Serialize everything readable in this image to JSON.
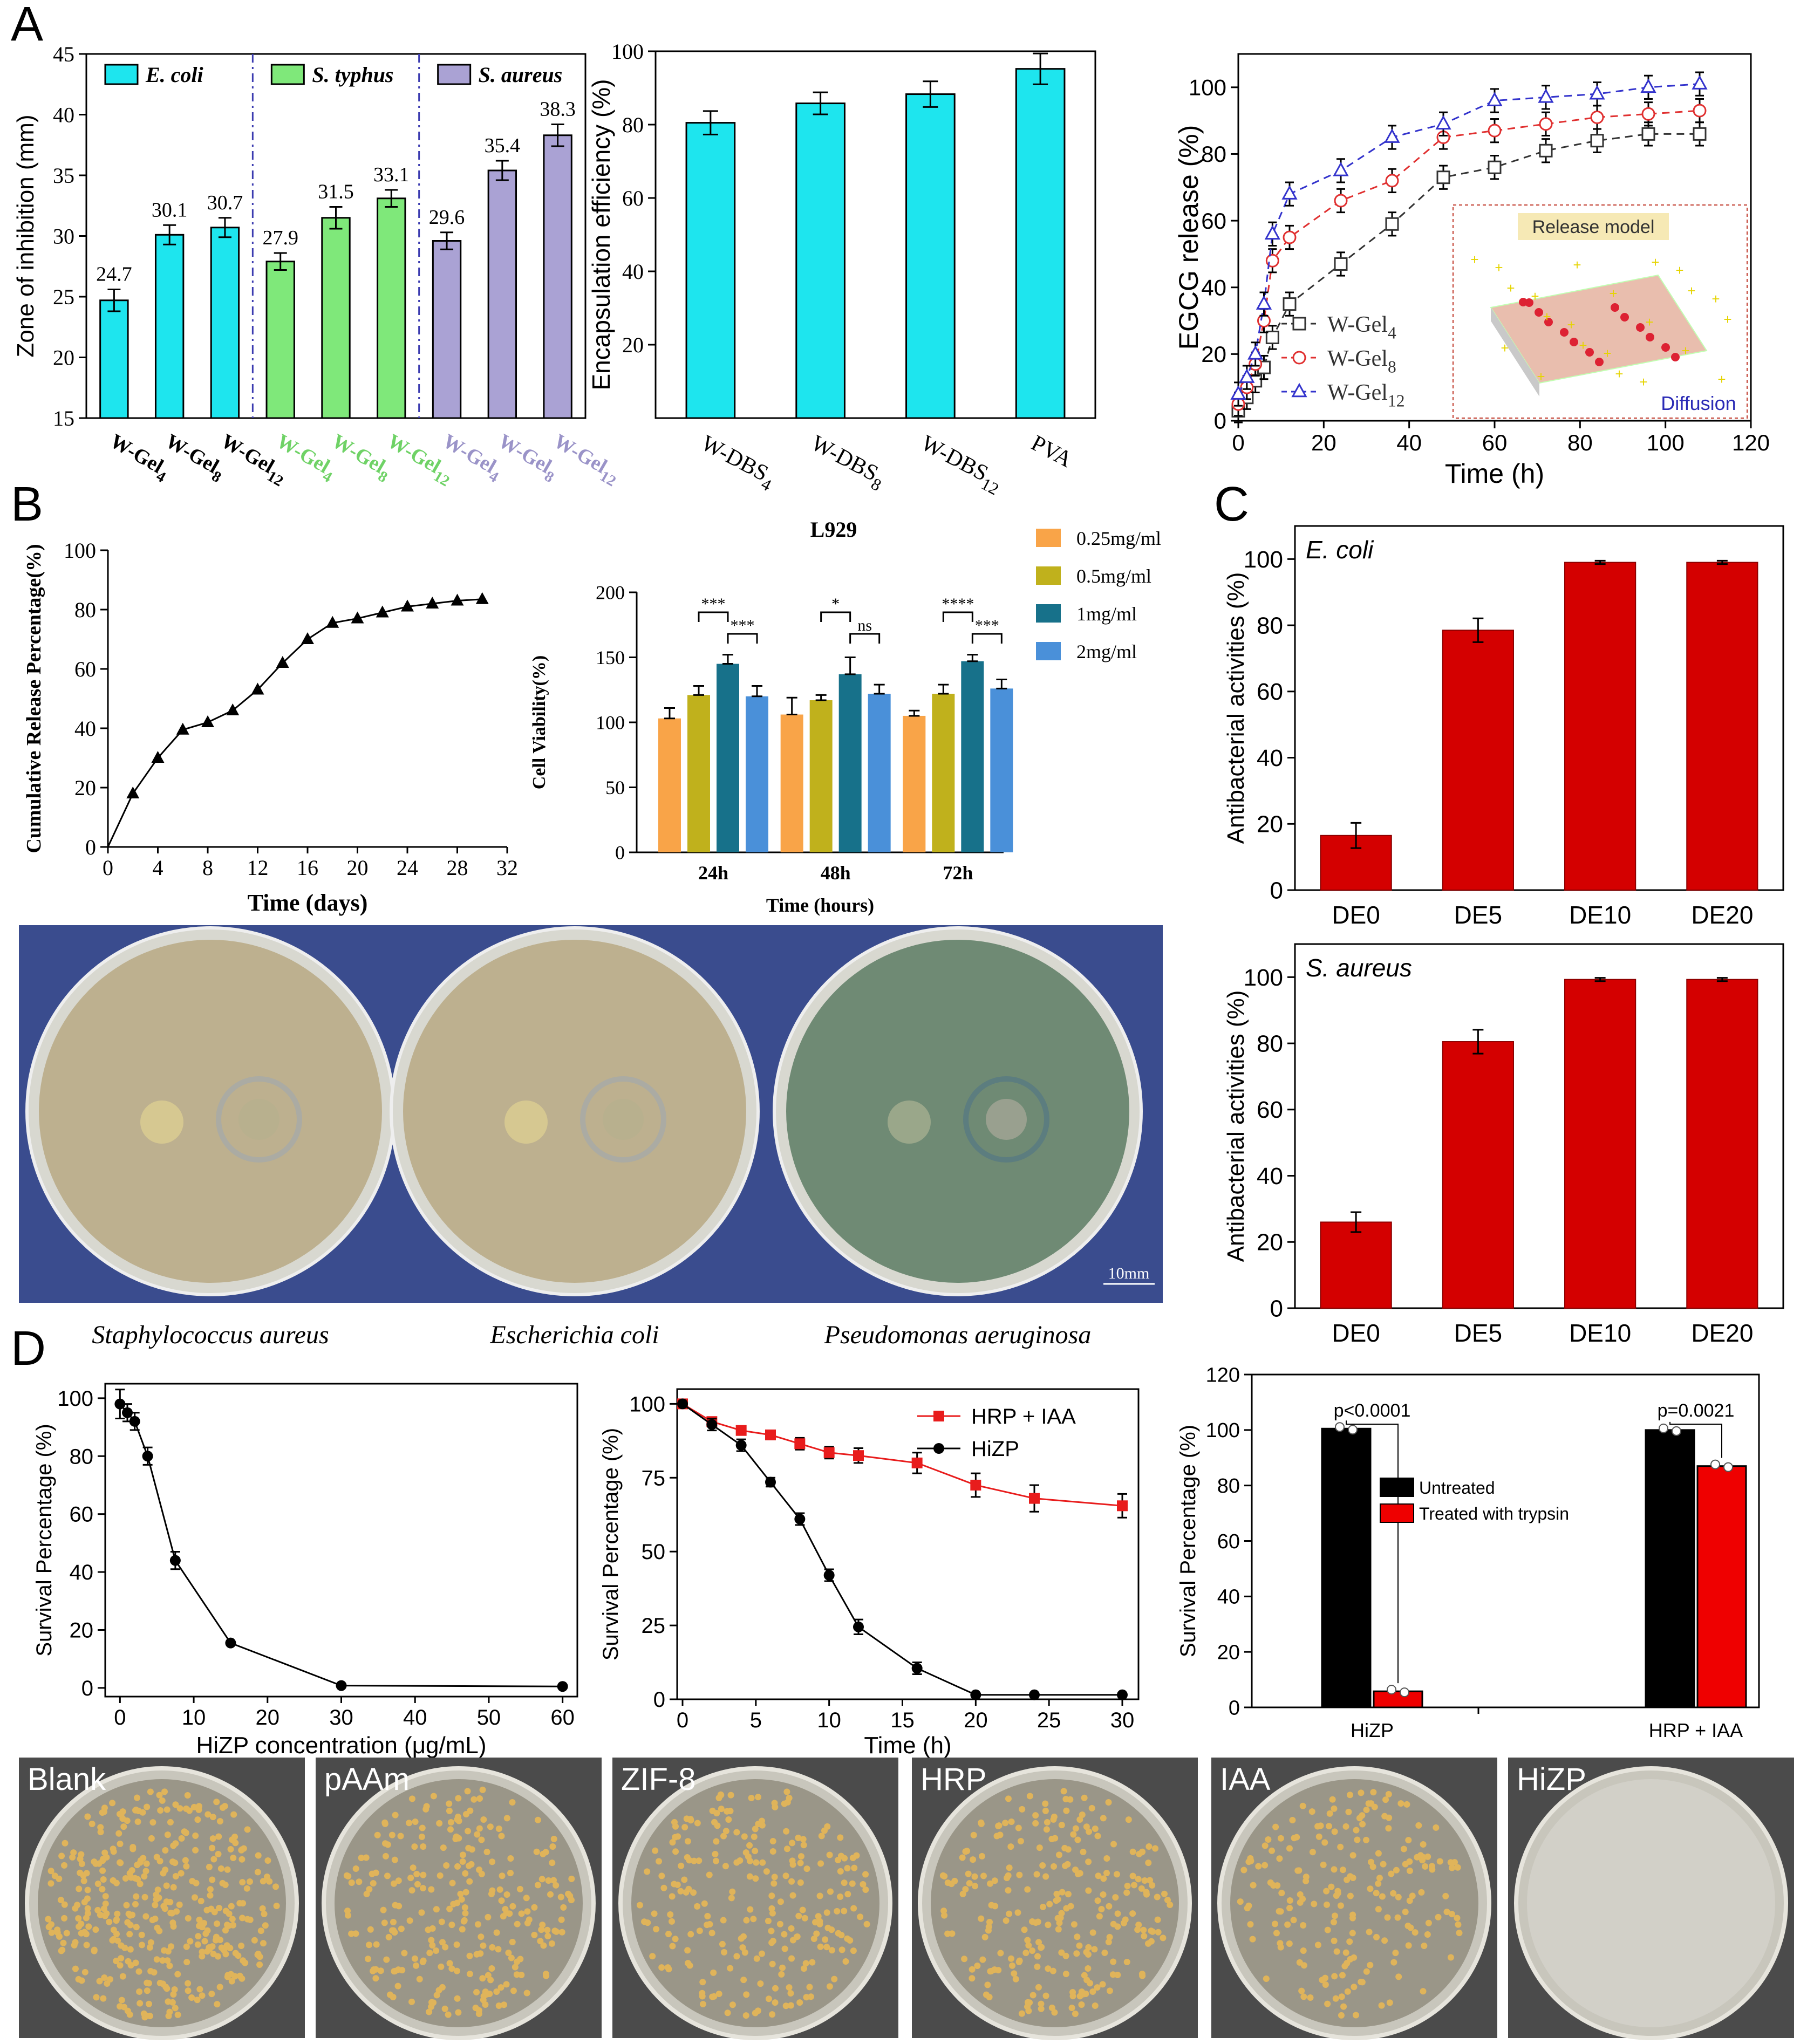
{
  "panels": {
    "A": "A",
    "B": "B",
    "C": "C",
    "D": "D"
  },
  "colors": {
    "cyan": "#1ee5ee",
    "green": "#7fe87a",
    "lavender": "#aaa2d4",
    "red": "#d40000",
    "black": "#000000",
    "orange": "#f9a448",
    "olive": "#c0b11c",
    "teal": "#17718a",
    "blue": "#4a90d9",
    "plate_bg": "#3a4c8e",
    "plate_agar": "#bdb08f",
    "plate_agar_pa": "#6f8a74"
  },
  "chart_data": [
    {
      "id": "A1",
      "type": "bar",
      "title": "",
      "ylabel": "Zone of inhibition (mm)",
      "ylim": [
        15,
        45
      ],
      "yticks": [
        15,
        20,
        25,
        30,
        35,
        40,
        45
      ],
      "legend": [
        "E. coli",
        "S. typhus",
        "S. aureus"
      ],
      "categories": [
        "W-Gel4",
        "W-Gel8",
        "W-Gel12",
        "W-Gel4",
        "W-Gel8",
        "W-Gel12",
        "W-Gel4",
        "W-Gel8",
        "W-Gel12"
      ],
      "groups": [
        "E. coli",
        "E. coli",
        "E. coli",
        "S. typhus",
        "S. typhus",
        "S. typhus",
        "S. aureus",
        "S. aureus",
        "S. aureus"
      ],
      "values": [
        24.7,
        30.1,
        30.7,
        27.9,
        31.5,
        33.1,
        29.6,
        35.4,
        38.3
      ],
      "labels": [
        "24.7",
        "30.1",
        "30.7",
        "27.9",
        "31.5",
        "33.1",
        "29.6",
        "35.4",
        "38.3"
      ],
      "errors": [
        0.9,
        0.8,
        0.8,
        0.7,
        0.9,
        0.7,
        0.7,
        0.8,
        0.9
      ]
    },
    {
      "id": "A2",
      "type": "bar",
      "ylabel": "Encapsulation efficiency (%)",
      "ylim": [
        0,
        100
      ],
      "yticks": [
        20,
        40,
        60,
        80,
        100
      ],
      "categories": [
        "W-DBS4",
        "W-DBS8",
        "W-DBS12",
        "PVA"
      ],
      "values": [
        80.5,
        85.8,
        88.3,
        95.2
      ],
      "errors": [
        3.2,
        3.0,
        3.5,
        4.2
      ]
    },
    {
      "id": "A3",
      "type": "line",
      "xlabel": "Time (h)",
      "ylabel": "EGCG release (%)",
      "xlim": [
        0,
        120
      ],
      "ylim": [
        0,
        110
      ],
      "xticks": [
        0,
        20,
        40,
        60,
        80,
        100,
        120
      ],
      "yticks": [
        0,
        20,
        40,
        60,
        80,
        100
      ],
      "inset_title": "Release model",
      "inset_label": "Diffusion",
      "series": [
        {
          "name": "W-Gel4",
          "x": [
            0,
            2,
            4,
            6,
            8,
            12,
            24,
            36,
            48,
            60,
            72,
            84,
            96,
            108
          ],
          "y": [
            3,
            7,
            12,
            16,
            25,
            35,
            47,
            59,
            73,
            76,
            81,
            84,
            86,
            86
          ]
        },
        {
          "name": "W-Gel8",
          "x": [
            0,
            2,
            4,
            6,
            8,
            12,
            24,
            36,
            48,
            60,
            72,
            84,
            96,
            108
          ],
          "y": [
            5,
            10,
            17,
            30,
            48,
            55,
            66,
            72,
            85,
            87,
            89,
            91,
            92,
            93
          ]
        },
        {
          "name": "W-Gel12",
          "x": [
            0,
            2,
            4,
            6,
            8,
            12,
            24,
            36,
            48,
            60,
            72,
            84,
            96,
            108
          ],
          "y": [
            8,
            13,
            20,
            35,
            56,
            68,
            75,
            85,
            89,
            96,
            97,
            98,
            100,
            101
          ]
        }
      ]
    },
    {
      "id": "B1",
      "type": "line",
      "xlabel": "Time (days)",
      "ylabel": "Cumulative Release Percentage(%)",
      "xlim": [
        0,
        32
      ],
      "ylim": [
        0,
        100
      ],
      "xticks": [
        0,
        4,
        8,
        12,
        16,
        20,
        24,
        28,
        32
      ],
      "yticks": [
        0,
        20,
        40,
        60,
        80,
        100
      ],
      "series": [
        {
          "name": "release",
          "x": [
            0,
            2,
            4,
            6,
            8,
            10,
            12,
            14,
            16,
            18,
            20,
            22,
            24,
            26,
            28,
            30
          ],
          "y": [
            0,
            18,
            30,
            39.5,
            42,
            46,
            53,
            62,
            70,
            75.5,
            77,
            79,
            81,
            82,
            83,
            83.5
          ]
        }
      ]
    },
    {
      "id": "B2",
      "type": "bar",
      "title": "L929",
      "xlabel": "Time (hours)",
      "ylabel": "Cell Viability(%)",
      "ylim": [
        0,
        200
      ],
      "yticks": [
        0,
        50,
        100,
        150,
        200
      ],
      "categories": [
        "24h",
        "48h",
        "72h"
      ],
      "series": [
        {
          "name": "0.25mg/ml",
          "values": [
            103,
            106,
            105
          ],
          "errors": [
            8,
            13,
            4
          ]
        },
        {
          "name": "0.5mg/ml",
          "values": [
            121,
            117,
            122
          ],
          "errors": [
            7,
            4,
            7
          ]
        },
        {
          "name": "1mg/ml",
          "values": [
            145,
            137,
            147
          ],
          "errors": [
            7,
            13,
            5
          ]
        },
        {
          "name": "2mg/ml",
          "values": [
            120,
            122,
            126
          ],
          "errors": [
            8,
            7,
            7
          ]
        }
      ],
      "significance": [
        {
          "group": "24h",
          "label": "***",
          "pair": [
            1,
            2
          ]
        },
        {
          "group": "24h",
          "label": "***",
          "pair": [
            2,
            3
          ]
        },
        {
          "group": "48h",
          "label": "*",
          "pair": [
            1,
            2
          ]
        },
        {
          "group": "48h",
          "label": "ns",
          "pair": [
            2,
            3
          ]
        },
        {
          "group": "72h",
          "label": "****",
          "pair": [
            1,
            2
          ]
        },
        {
          "group": "72h",
          "label": "***",
          "pair": [
            2,
            3
          ]
        }
      ]
    },
    {
      "id": "C1",
      "type": "bar",
      "title": "E. coli",
      "ylabel": "Antibacterial activities (%)",
      "ylim": [
        0,
        110
      ],
      "yticks": [
        0,
        20,
        40,
        60,
        80,
        100
      ],
      "categories": [
        "DE0",
        "DE5",
        "DE10",
        "DE20"
      ],
      "values": [
        16.5,
        78.5,
        99,
        99
      ],
      "errors": [
        3.8,
        3.6,
        0.5,
        0.5
      ]
    },
    {
      "id": "C2",
      "type": "bar",
      "title": "S. aureus",
      "ylabel": "Antibacterial activities (%)",
      "ylim": [
        0,
        110
      ],
      "yticks": [
        0,
        20,
        40,
        60,
        80,
        100
      ],
      "categories": [
        "DE0",
        "DE5",
        "DE10",
        "DE20"
      ],
      "values": [
        26,
        80.5,
        99.3,
        99.3
      ],
      "errors": [
        3.0,
        3.6,
        0.5,
        0.5
      ]
    },
    {
      "id": "D1",
      "type": "line",
      "xlabel": "HiZP concentration (μg/mL)",
      "ylabel": "Survival Percentage (%)",
      "xlim": [
        -2,
        62
      ],
      "ylim": [
        -3,
        105
      ],
      "xticks": [
        0,
        10,
        20,
        30,
        40,
        50,
        60
      ],
      "yticks": [
        0,
        20,
        40,
        60,
        80,
        100
      ],
      "series": [
        {
          "name": "HiZP",
          "x": [
            0,
            1,
            2,
            3.75,
            7.5,
            15,
            30,
            60
          ],
          "y": [
            98,
            95,
            92,
            80,
            44,
            15.5,
            0.8,
            0.5
          ],
          "errors": [
            5,
            3,
            3,
            3,
            3,
            0.5,
            0.2,
            0.2
          ]
        }
      ]
    },
    {
      "id": "D2",
      "type": "line",
      "xlabel": "Time (h)",
      "ylabel": "Survival Percentage (%)",
      "xlim": [
        0,
        30
      ],
      "ylim": [
        0,
        105
      ],
      "xticks": [
        0,
        5,
        10,
        15,
        20,
        25,
        30
      ],
      "yticks": [
        0,
        25,
        50,
        75,
        100
      ],
      "series": [
        {
          "name": "HRP + IAA",
          "x": [
            0,
            2,
            4,
            6,
            8,
            10,
            12,
            16,
            20,
            24,
            30
          ],
          "y": [
            100,
            94,
            91,
            89.5,
            86.5,
            83.5,
            82.5,
            80,
            72.5,
            68,
            65.5
          ],
          "errors": [
            0,
            1.5,
            1.5,
            1.5,
            2,
            2,
            2.5,
            3.5,
            4,
            4.5,
            4
          ]
        },
        {
          "name": "HiZP",
          "x": [
            0,
            2,
            4,
            6,
            8,
            10,
            12,
            16,
            20,
            24,
            30
          ],
          "y": [
            100,
            93,
            86,
            73.5,
            61,
            42,
            24.5,
            10.5,
            1.5,
            1.5,
            1.5
          ],
          "errors": [
            0,
            2,
            2,
            1.5,
            2,
            2,
            2.5,
            2,
            0.3,
            0.3,
            0.3
          ]
        }
      ]
    },
    {
      "id": "D3",
      "type": "bar",
      "ylabel": "Survival Percentage (%)",
      "ylim": [
        0,
        120
      ],
      "yticks": [
        0,
        20,
        40,
        60,
        80,
        100,
        120
      ],
      "categories": [
        "HiZP",
        "HRP + IAA"
      ],
      "series": [
        {
          "name": "Untreated",
          "values": [
            100.5,
            100
          ]
        },
        {
          "name": "Treated with trypsin",
          "values": [
            5.8,
            87
          ]
        }
      ],
      "pvalues": [
        "p<0.0001",
        "p=0.0021"
      ]
    }
  ],
  "plate_row_B": {
    "captions": [
      "Staphylococcus aureus",
      "Escherichia coli",
      "Pseudomonas aeruginosa"
    ],
    "scale_bar": "10mm"
  },
  "plate_row_D": {
    "labels": [
      "Blank",
      "pAAm",
      "ZIF-8",
      "HRP",
      "IAA",
      "HiZP"
    ]
  }
}
